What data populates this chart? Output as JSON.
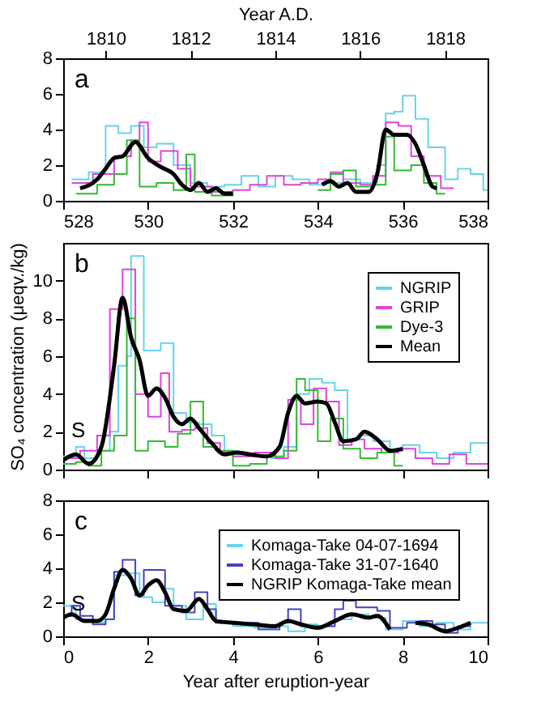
{
  "chart_data": [
    {
      "type": "step",
      "xlim": [
        528,
        538
      ],
      "xticks": [
        528,
        530,
        532,
        534,
        536,
        538
      ],
      "ylim": [
        0,
        8
      ],
      "yticks": [
        0,
        2,
        4,
        6,
        8
      ],
      "x2lim": [
        1809,
        1819
      ],
      "x2ticks": [
        1810,
        1812,
        1814,
        1816,
        1818
      ],
      "x2label": "Year A.D.",
      "annotations": [
        "a"
      ],
      "series": [
        {
          "color": "#66d4ea",
          "x": [
            528.2,
            528.6,
            529.0,
            529.3,
            529.6,
            529.9,
            530.2,
            530.6,
            531.0,
            531.4,
            531.8,
            532.2,
            532.6,
            533.0,
            533.4,
            533.8,
            534.2,
            534.6,
            535.0,
            535.4,
            535.6,
            535.8,
            536.0,
            536.3,
            536.6,
            537.0,
            537.3,
            537.6,
            537.9,
            538.0
          ],
          "values": [
            1.2,
            1.6,
            4.2,
            3.8,
            4.2,
            3.0,
            3.2,
            2.0,
            1.0,
            0.8,
            0.9,
            1.4,
            0.8,
            1.4,
            1.2,
            0.9,
            1.0,
            1.2,
            1.0,
            2.0,
            4.9,
            5.0,
            5.9,
            4.6,
            3.0,
            1.2,
            1.8,
            1.5,
            0.6,
            0.6
          ]
        },
        {
          "color": "#dd44dd",
          "x": [
            528.2,
            528.7,
            529.2,
            529.6,
            529.8,
            530.0,
            530.3,
            530.7,
            531.0,
            531.5,
            532.0,
            532.4,
            532.8,
            533.2,
            533.6,
            534.0,
            534.3,
            534.6,
            535.0,
            535.3,
            535.6,
            535.9,
            536.2,
            536.5,
            536.9,
            537.2
          ],
          "values": [
            1.0,
            1.5,
            2.5,
            3.4,
            4.4,
            2.2,
            2.8,
            1.8,
            0.8,
            0.5,
            0.6,
            0.9,
            1.4,
            0.9,
            1.0,
            1.2,
            1.6,
            1.0,
            0.9,
            1.4,
            4.4,
            4.2,
            2.5,
            1.4,
            0.7,
            0.7
          ]
        },
        {
          "color": "#33bb33",
          "x": [
            528.3,
            528.8,
            529.2,
            529.5,
            529.8,
            530.2,
            530.6,
            530.9,
            531.1,
            531.5,
            532.0,
            532.4,
            534.0,
            534.3,
            534.6,
            534.9,
            535.3,
            535.6,
            535.8,
            536.2,
            536.5,
            536.8,
            537.0
          ],
          "values": [
            0.4,
            0.9,
            1.5,
            3.4,
            0.8,
            1.0,
            0.6,
            2.6,
            0.5,
            0.3,
            0.4,
            null,
            0.6,
            1.5,
            1.7,
            0.8,
            0.9,
            3.6,
            1.7,
            2.0,
            1.0,
            0.4,
            0.4
          ]
        },
        {
          "color": "#000000",
          "type": "line",
          "x": [
            528.4,
            528.8,
            529.0,
            529.2,
            529.4,
            529.7,
            530.0,
            530.3,
            530.6,
            530.8,
            531.0,
            531.2,
            531.4,
            531.6,
            531.8,
            532.0,
            533.0,
            534.1,
            534.3,
            534.5,
            534.7,
            534.9,
            535.2,
            535.4,
            535.6,
            535.8,
            536.1,
            536.3,
            536.5,
            536.7,
            536.8
          ],
          "values": [
            0.7,
            1.2,
            1.8,
            2.4,
            2.5,
            3.3,
            2.4,
            1.9,
            1.5,
            0.9,
            0.6,
            1.0,
            0.5,
            0.7,
            0.4,
            0.4,
            null,
            0.9,
            1.1,
            0.8,
            1.0,
            0.5,
            0.5,
            1.5,
            4.0,
            3.7,
            3.7,
            3.2,
            2.0,
            0.8,
            0.7
          ]
        }
      ]
    },
    {
      "type": "step",
      "xlim": [
        0,
        10
      ],
      "xticks": [
        0,
        2,
        4,
        6,
        8,
        10
      ],
      "ylim": [
        0,
        12
      ],
      "yticks": [
        0,
        2,
        4,
        6,
        8,
        10
      ],
      "tick_labels": "y",
      "ylabel": "SO₄ concentration (μeqv./kg)",
      "legend": "top right",
      "annotations": [
        "b",
        "S"
      ],
      "series": [
        {
          "name": "NGRIP",
          "color": "#66d4ea",
          "x": [
            0,
            0.3,
            0.5,
            0.8,
            1.1,
            1.3,
            1.5,
            1.6,
            1.9,
            2.3,
            2.6,
            2.9,
            3.2,
            3.5,
            3.8,
            4.1,
            4.5,
            4.9,
            5.2,
            5.5,
            5.8,
            6.1,
            6.4,
            6.7,
            7.0,
            7.3,
            7.7,
            8.0,
            8.4,
            8.8,
            9.2,
            9.6,
            10
          ],
          "values": [
            0.7,
            1.2,
            0.6,
            1.0,
            2.0,
            5.5,
            6.0,
            11.3,
            6.3,
            6.7,
            3.0,
            2.5,
            2.4,
            1.8,
            1.0,
            0.8,
            0.7,
            0.6,
            1.2,
            4.0,
            4.8,
            4.6,
            4.2,
            1.6,
            1.8,
            1.5,
            1.0,
            1.3,
            0.9,
            0.6,
            0.9,
            1.4,
            1.4
          ]
        },
        {
          "name": "GRIP",
          "color": "#dd44dd",
          "x": [
            0,
            0.4,
            0.8,
            1.1,
            1.4,
            1.7,
            2.0,
            2.3,
            2.5,
            2.8,
            3.1,
            3.4,
            3.7,
            4.0,
            4.5,
            5.0,
            5.3,
            5.6,
            5.9,
            6.2,
            6.5,
            6.8,
            7.1,
            7.5,
            7.9,
            8.3,
            8.7,
            9.1,
            9.5,
            10
          ],
          "values": [
            0.6,
            1.0,
            1.8,
            8.5,
            10.6,
            4.0,
            2.8,
            5.1,
            2.0,
            2.1,
            2.2,
            1.4,
            0.9,
            0.7,
            0.9,
            0.6,
            3.7,
            2.4,
            4.3,
            3.6,
            1.3,
            1.6,
            1.1,
            0.9,
            1.1,
            0.6,
            0.3,
            0.8,
            0.3,
            0.3
          ]
        },
        {
          "name": "Dye-3",
          "color": "#33bb33",
          "x": [
            0,
            0.3,
            0.6,
            0.9,
            1.2,
            1.5,
            1.7,
            2.0,
            2.4,
            2.7,
            3.0,
            3.3,
            3.6,
            4.0,
            4.4,
            4.8,
            5.2,
            5.5,
            5.7,
            6.0,
            6.3,
            6.6,
            7.0,
            7.4,
            7.8,
            8.0
          ],
          "values": [
            0.3,
            0.4,
            0.2,
            1.0,
            1.8,
            8.0,
            1.0,
            1.5,
            1.2,
            1.9,
            3.6,
            1.2,
            1.0,
            0.2,
            0.3,
            0.7,
            1.0,
            4.8,
            4.2,
            1.5,
            2.7,
            1.1,
            0.6,
            0.9,
            0.2,
            0.2
          ]
        },
        {
          "name": "Mean",
          "color": "#000000",
          "type": "line",
          "x": [
            0,
            0.3,
            0.6,
            0.9,
            1.2,
            1.4,
            1.6,
            1.8,
            2.0,
            2.2,
            2.4,
            2.6,
            2.8,
            3.0,
            3.2,
            3.5,
            3.8,
            4.1,
            4.4,
            4.8,
            5.1,
            5.3,
            5.5,
            5.7,
            6.0,
            6.2,
            6.4,
            6.6,
            6.9,
            7.1,
            7.4,
            7.7,
            8.0
          ],
          "values": [
            0.5,
            0.8,
            0.3,
            1.2,
            5.5,
            9.1,
            7.0,
            5.8,
            3.9,
            4.3,
            3.8,
            2.8,
            2.4,
            2.7,
            2.2,
            1.4,
            0.8,
            0.9,
            0.8,
            0.7,
            1.2,
            3.0,
            3.9,
            3.5,
            3.6,
            3.5,
            2.5,
            1.5,
            1.6,
            2.0,
            1.6,
            1.0,
            1.1
          ]
        }
      ]
    },
    {
      "type": "step",
      "xlim": [
        0,
        10
      ],
      "xticks": [
        0,
        2,
        4,
        6,
        8,
        10
      ],
      "ylim": [
        0,
        8
      ],
      "yticks": [
        0,
        2,
        4,
        6,
        8
      ],
      "xlabel": "Year after eruption-year",
      "legend": "top right",
      "annotations": [
        "c",
        "S"
      ],
      "series": [
        {
          "name": "Komaga-Take 04-07-1694",
          "color": "#66d4ea",
          "x": [
            0,
            0.3,
            0.7,
            1.0,
            1.2,
            1.5,
            1.8,
            2.1,
            2.4,
            2.6,
            2.9,
            3.3,
            3.6,
            4.0,
            4.5,
            5.0,
            5.3,
            5.7,
            6.0,
            6.4,
            6.8,
            7.2,
            7.6,
            8.0,
            8.4,
            8.8,
            9.2,
            9.6,
            10
          ],
          "values": [
            1.8,
            1.0,
            0.8,
            1.0,
            3.6,
            3.7,
            2.3,
            2.0,
            2.8,
            1.8,
            1.0,
            1.9,
            0.8,
            0.6,
            0.5,
            0.6,
            0.3,
            0.7,
            0.6,
            1.0,
            1.3,
            1.1,
            0.4,
            0.9,
            0.6,
            0.8,
            0.4,
            0.8,
            0.7
          ]
        },
        {
          "name": "Komaga-Take 31-07-1640",
          "color": "#4444bb",
          "x": [
            0,
            0.2,
            0.4,
            0.7,
            1.0,
            1.2,
            1.4,
            1.7,
            1.9,
            2.4,
            2.8,
            3.1,
            3.4,
            3.6,
            4.0,
            4.6,
            5.1,
            5.3,
            5.6,
            6.0,
            6.4,
            6.6,
            6.9,
            7.4,
            7.7,
            8.1,
            8.4,
            8.7,
            9.0,
            9.3,
            9.6
          ],
          "values": [
            1.2,
            1.8,
            1.2,
            0.7,
            1.0,
            3.8,
            4.5,
            2.4,
            3.9,
            1.8,
            1.4,
            2.6,
            1.6,
            0.8,
            0.8,
            0.4,
            0.8,
            1.6,
            0.6,
            0.6,
            1.6,
            2.1,
            1.7,
            1.5,
            0.5,
            0.8,
            0.9,
            0.7,
            0.2,
            0.6,
            0.6
          ]
        },
        {
          "name": "NGRIP Komaga-Take mean",
          "color": "#000000",
          "type": "line",
          "x": [
            0,
            0.2,
            0.5,
            0.8,
            1.0,
            1.2,
            1.4,
            1.6,
            1.8,
            2.0,
            2.2,
            2.4,
            2.6,
            2.9,
            3.2,
            3.4,
            3.6,
            4.0,
            4.5,
            5.0,
            5.3,
            5.6,
            6.0,
            6.4,
            6.8,
            7.2,
            7.4,
            7.7,
            8.0,
            8.3,
            8.6,
            9.0,
            9.3,
            9.6
          ],
          "values": [
            1.1,
            1.3,
            0.9,
            0.9,
            1.3,
            2.8,
            3.9,
            3.4,
            2.4,
            3.0,
            3.3,
            2.6,
            1.6,
            1.5,
            2.2,
            1.6,
            0.9,
            0.8,
            0.7,
            0.6,
            0.9,
            0.7,
            0.5,
            0.9,
            1.3,
            1.1,
            1.2,
            0.4,
            null,
            0.8,
            0.7,
            0.3,
            0.5,
            0.8
          ]
        }
      ]
    }
  ]
}
